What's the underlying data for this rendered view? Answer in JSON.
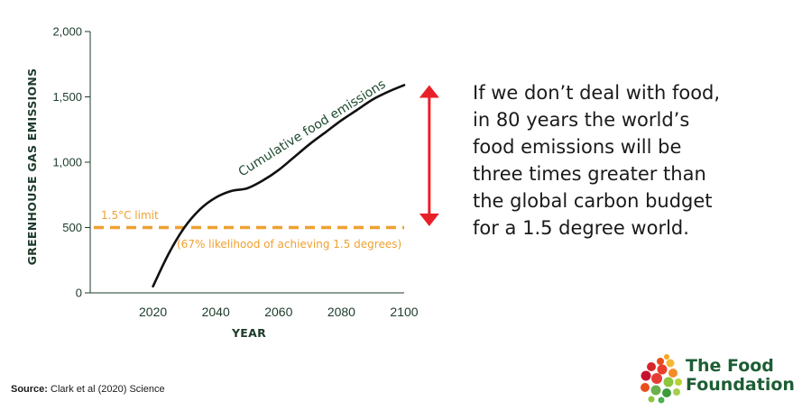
{
  "chart_data": {
    "type": "line",
    "xlabel": "YEAR",
    "ylabel": "GREENHOUSE GAS EMISSIONS",
    "xlim": [
      2000,
      2100
    ],
    "ylim": [
      0,
      2000
    ],
    "x_ticks": [
      "2020",
      "2040",
      "2060",
      "2080",
      "2100"
    ],
    "y_ticks": [
      "0",
      "500",
      "1,000",
      "1,500",
      "2,000"
    ],
    "series": [
      {
        "name": "Cumulative food emissions",
        "color": "#111111",
        "x": [
          2020,
          2025,
          2030,
          2035,
          2040,
          2045,
          2050,
          2055,
          2060,
          2065,
          2070,
          2075,
          2080,
          2085,
          2090,
          2095,
          2100
        ],
        "y": [
          50,
          300,
          500,
          640,
          730,
          780,
          800,
          860,
          940,
          1040,
          1140,
          1230,
          1320,
          1400,
          1480,
          1540,
          1590
        ]
      }
    ],
    "reference_line": {
      "y": 500,
      "color": "#f0a030",
      "style": "dashed",
      "label": "1.5°C limit",
      "note": "(67% likelihood of achieving 1.5 degrees)"
    },
    "arrow": {
      "x": 2108,
      "y_from": 510,
      "y_to": 1590,
      "color": "#e8202a"
    }
  },
  "message": {
    "lines": [
      "If we don’t deal with food,",
      "in 80 years the world’s",
      "food emissions will be",
      "three times greater than",
      "the global carbon budget",
      "for a 1.5 degree world."
    ]
  },
  "source": {
    "label": "Source:",
    "text": "Clark et al (2020) Science"
  },
  "logo": {
    "line1": "The Food",
    "line2": "Foundation"
  },
  "colors": {
    "axis": "#1d3b2a",
    "accent_orange": "#f0a030",
    "arrow_red": "#e8202a",
    "brand_green": "#1d5e34"
  }
}
